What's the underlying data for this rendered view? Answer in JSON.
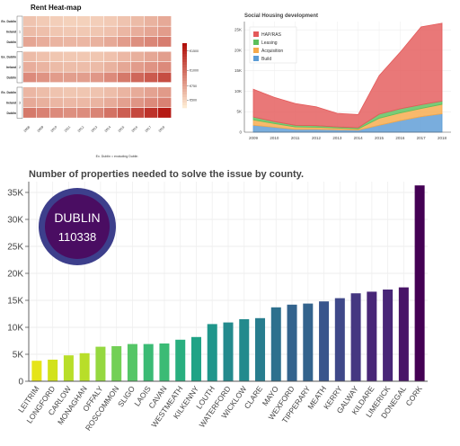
{
  "colors": {
    "heat_low": "#fdebd3",
    "heat_high": "#b10f0a",
    "hap": "#e45a5a",
    "leasing": "#5cc05c",
    "acquisition": "#f6a94a",
    "build": "#5b9bd5",
    "badge_ring": "#3d3f8c",
    "badge_fill": "#4a0d62",
    "badge_text": "#ffffff",
    "bar_palette": [
      "#e5e419",
      "#d2e21b",
      "#b8de29",
      "#95d840",
      "#73d056",
      "#55c667",
      "#3bbb75",
      "#29af7f",
      "#20a386",
      "#1f968b",
      "#238a8d",
      "#287d8e",
      "#2d708e",
      "#33638d",
      "#39558c",
      "#3f4889",
      "#453781",
      "#482677",
      "#481467",
      "#440154"
    ]
  },
  "heatmap": {
    "title": "Rent Heat-map",
    "years": [
      "2008",
      "2009",
      "2010",
      "2011",
      "2012",
      "2013",
      "2014",
      "2015",
      "2016",
      "2017",
      "2018"
    ],
    "groups": [
      {
        "row_labels": [
          "Ex. Dublin",
          "Ireland",
          "Dublin"
        ],
        "side_label": "1 Bed",
        "levels": [
          [
            0.18,
            0.15,
            0.13,
            0.12,
            0.12,
            0.13,
            0.15,
            0.18,
            0.22,
            0.26,
            0.3
          ],
          [
            0.22,
            0.2,
            0.17,
            0.16,
            0.16,
            0.17,
            0.19,
            0.24,
            0.28,
            0.32,
            0.36
          ],
          [
            0.32,
            0.28,
            0.25,
            0.24,
            0.24,
            0.26,
            0.3,
            0.36,
            0.42,
            0.46,
            0.5
          ]
        ]
      },
      {
        "row_labels": [
          "Ex. Dublin",
          "Ireland",
          "Dublin"
        ],
        "side_label": "2 Bed",
        "levels": [
          [
            0.22,
            0.19,
            0.17,
            0.16,
            0.16,
            0.17,
            0.19,
            0.23,
            0.27,
            0.31,
            0.35
          ],
          [
            0.28,
            0.25,
            0.22,
            0.21,
            0.21,
            0.22,
            0.26,
            0.31,
            0.36,
            0.4,
            0.44
          ],
          [
            0.44,
            0.4,
            0.36,
            0.35,
            0.35,
            0.38,
            0.44,
            0.52,
            0.6,
            0.66,
            0.72
          ]
        ]
      },
      {
        "row_labels": [
          "Ex. Dublin",
          "Ireland",
          "Dublin"
        ],
        "side_label": "3 Bed",
        "levels": [
          [
            0.24,
            0.21,
            0.18,
            0.17,
            0.17,
            0.18,
            0.21,
            0.25,
            0.29,
            0.33,
            0.37
          ],
          [
            0.3,
            0.27,
            0.24,
            0.23,
            0.23,
            0.25,
            0.29,
            0.34,
            0.39,
            0.44,
            0.48
          ],
          [
            0.52,
            0.48,
            0.44,
            0.42,
            0.43,
            0.47,
            0.55,
            0.64,
            0.74,
            0.84,
            0.95
          ]
        ]
      }
    ],
    "colorbar_ticks": [
      "€1500",
      "€1000",
      "€750",
      "€500"
    ],
    "xlabel": "Ex. Dublin = excluding Dublin"
  },
  "stack_chart": {
    "title": "Social Housing development",
    "years": [
      2009,
      2010,
      2011,
      2012,
      2013,
      2014,
      2015,
      2016,
      2017,
      2018
    ],
    "series": [
      {
        "name": "Build",
        "values": [
          1700,
          1200,
          700,
          700,
          600,
          500,
          1700,
          2800,
          3800,
          4500
        ]
      },
      {
        "name": "Acquisition",
        "values": [
          1300,
          900,
          600,
          500,
          400,
          300,
          1700,
          1900,
          2000,
          2300
        ]
      },
      {
        "name": "Leasing",
        "values": [
          700,
          500,
          400,
          400,
          300,
          300,
          1000,
          1000,
          900,
          800
        ]
      },
      {
        "name": "HAP/RAS",
        "values": [
          6800,
          5900,
          5300,
          4600,
          3300,
          3200,
          9400,
          13800,
          19000,
          19000
        ]
      }
    ],
    "legend_order": [
      "HAP/RAS",
      "Leasing",
      "Acquisition",
      "Build"
    ],
    "ylim": [
      0,
      27000
    ],
    "yticks": [
      0,
      5000,
      10000,
      15000,
      20000,
      25000
    ],
    "ytick_labels": [
      "0",
      "5K",
      "10K",
      "15K",
      "20K",
      "25K"
    ],
    "legend_position": "top-left"
  },
  "county_chart": {
    "title": "Number of properties needed to solve the issue by county.",
    "badge": {
      "label": "DUBLIN",
      "value": "110338"
    },
    "chart_data": {
      "type": "bar",
      "categories": [
        "LEITRIM",
        "LONGFORD",
        "CARLOW",
        "MONAGHAN",
        "OFFALY",
        "ROSCOMMON",
        "SLIGO",
        "LAOIS",
        "CAVAN",
        "WESTMEATH",
        "KILKENNY",
        "LOUTH",
        "WATERFORD",
        "WICKLOW",
        "CLARE",
        "MAYO",
        "WEXFORD",
        "TIPPERARY",
        "MEATH",
        "KERRY",
        "GALWAY",
        "KILDARE",
        "LIMERICK",
        "DONEGAL",
        "CORK"
      ],
      "values": [
        3800,
        4000,
        4800,
        5200,
        6400,
        6500,
        6900,
        6900,
        7000,
        7700,
        8200,
        10600,
        10900,
        11500,
        11700,
        13700,
        14200,
        14400,
        14800,
        15400,
        16300,
        16600,
        17000,
        17400,
        36300
      ],
      "ylim": [
        0,
        37000
      ],
      "yticks": [
        0,
        5000,
        10000,
        15000,
        20000,
        25000,
        30000,
        35000
      ],
      "ytick_labels": [
        "0",
        "5K",
        "10K",
        "15K",
        "20K",
        "25K",
        "30K",
        "35K"
      ]
    }
  }
}
